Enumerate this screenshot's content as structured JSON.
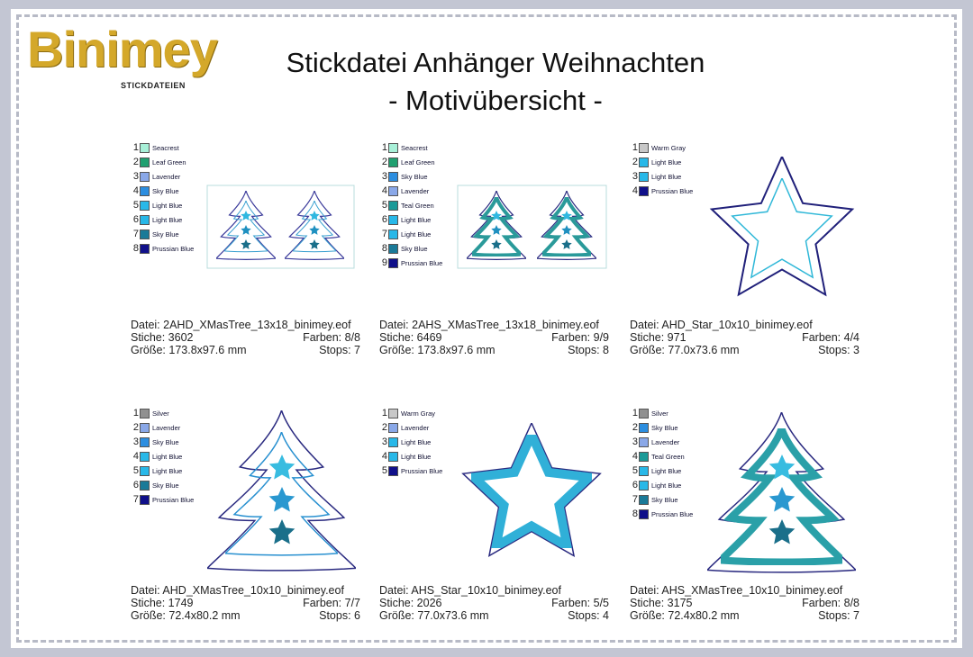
{
  "header": {
    "logo": "Binimey",
    "logo_sub": "STICKDATEIEN",
    "title": "Stickdatei Anhänger Weihnachten",
    "subtitle": "- Motivübersicht -"
  },
  "motifs": [
    {
      "colors": [
        {
          "number": 1,
          "name": "Seacrest",
          "color": "#a8f0d8"
        },
        {
          "number": 2,
          "name": "Leaf Green",
          "color": "#20a070"
        },
        {
          "number": 3,
          "name": "Lavender",
          "color": "#8aa8e8"
        },
        {
          "number": 4,
          "name": "Sky Blue",
          "color": "#2c8ee0"
        },
        {
          "number": 5,
          "name": "Light Blue",
          "color": "#28b8e8"
        },
        {
          "number": 6,
          "name": "Light Blue",
          "color": "#28b8e8"
        },
        {
          "number": 7,
          "name": "Sky Blue",
          "color": "#1a7a98"
        },
        {
          "number": 8,
          "name": "Prussian Blue",
          "color": "#10108a"
        }
      ],
      "file": "Datei: 2AHD_XMasTree_13x18_binimey.eof",
      "stitches": "Stiche: 3602",
      "colors_count": "Farben: 8/8",
      "size": "Größe: 173.8x97.6 mm",
      "stops": "Stops: 7"
    },
    {
      "colors": [
        {
          "number": 1,
          "name": "Seacrest",
          "color": "#a8f0d8"
        },
        {
          "number": 2,
          "name": "Leaf Green",
          "color": "#20a070"
        },
        {
          "number": 3,
          "name": "Sky Blue",
          "color": "#2c8ee0"
        },
        {
          "number": 4,
          "name": "Lavender",
          "color": "#8aa8e8"
        },
        {
          "number": 5,
          "name": "Teal Green",
          "color": "#1a9a98"
        },
        {
          "number": 6,
          "name": "Light Blue",
          "color": "#28b8e8"
        },
        {
          "number": 7,
          "name": "Light Blue",
          "color": "#28b8e8"
        },
        {
          "number": 8,
          "name": "Sky Blue",
          "color": "#1a7a98"
        },
        {
          "number": 9,
          "name": "Prussian Blue",
          "color": "#10108a"
        }
      ],
      "file": "Datei: 2AHS_XMasTree_13x18_binimey.eof",
      "stitches": "Stiche: 6469",
      "colors_count": "Farben: 9/9",
      "size": "Größe: 173.8x97.6 mm",
      "stops": "Stops: 8"
    },
    {
      "colors": [
        {
          "number": 1,
          "name": "Warm Gray",
          "color": "#c8c8c8"
        },
        {
          "number": 2,
          "name": "Light Blue",
          "color": "#28b8e8"
        },
        {
          "number": 3,
          "name": "Light Blue",
          "color": "#28b8e8"
        },
        {
          "number": 4,
          "name": "Prussian Blue",
          "color": "#10108a"
        }
      ],
      "file": "Datei: AHD_Star_10x10_binimey.eof",
      "stitches": "Stiche: 971",
      "colors_count": "Farben: 4/4",
      "size": "Größe: 77.0x73.6 mm",
      "stops": "Stops: 3"
    },
    {
      "colors": [
        {
          "number": 1,
          "name": "Silver",
          "color": "#909090"
        },
        {
          "number": 2,
          "name": "Lavender",
          "color": "#8aa8e8"
        },
        {
          "number": 3,
          "name": "Sky Blue",
          "color": "#2c8ee0"
        },
        {
          "number": 4,
          "name": "Light Blue",
          "color": "#28b8e8"
        },
        {
          "number": 5,
          "name": "Light Blue",
          "color": "#28b8e8"
        },
        {
          "number": 6,
          "name": "Sky Blue",
          "color": "#1a7a98"
        },
        {
          "number": 7,
          "name": "Prussian Blue",
          "color": "#10108a"
        }
      ],
      "file": "Datei: AHD_XMasTree_10x10_binimey.eof",
      "stitches": "Stiche: 1749",
      "colors_count": "Farben: 7/7",
      "size": "Größe: 72.4x80.2 mm",
      "stops": "Stops: 6"
    },
    {
      "colors": [
        {
          "number": 1,
          "name": "Warm Gray",
          "color": "#c8c8c8"
        },
        {
          "number": 2,
          "name": "Lavender",
          "color": "#8aa8e8"
        },
        {
          "number": 3,
          "name": "Light Blue",
          "color": "#28b8e8"
        },
        {
          "number": 4,
          "name": "Light Blue",
          "color": "#28b8e8"
        },
        {
          "number": 5,
          "name": "Prussian Blue",
          "color": "#10108a"
        }
      ],
      "file": "Datei: AHS_Star_10x10_binimey.eof",
      "stitches": "Stiche: 2026",
      "colors_count": "Farben: 5/5",
      "size": "Größe: 77.0x73.6 mm",
      "stops": "Stops: 4"
    },
    {
      "colors": [
        {
          "number": 1,
          "name": "Silver",
          "color": "#909090"
        },
        {
          "number": 2,
          "name": "Sky Blue",
          "color": "#2c8ee0"
        },
        {
          "number": 3,
          "name": "Lavender",
          "color": "#8aa8e8"
        },
        {
          "number": 4,
          "name": "Teal Green",
          "color": "#1a9a98"
        },
        {
          "number": 5,
          "name": "Light Blue",
          "color": "#28b8e8"
        },
        {
          "number": 6,
          "name": "Light Blue",
          "color": "#28b8e8"
        },
        {
          "number": 7,
          "name": "Sky Blue",
          "color": "#1a7a98"
        },
        {
          "number": 8,
          "name": "Prussian Blue",
          "color": "#10108a"
        }
      ],
      "file": "Datei: AHS_XMasTree_10x10_binimey.eof",
      "stitches": "Stiche: 3175",
      "colors_count": "Farben: 8/8",
      "size": "Größe: 72.4x80.2 mm",
      "stops": "Stops: 7"
    }
  ]
}
